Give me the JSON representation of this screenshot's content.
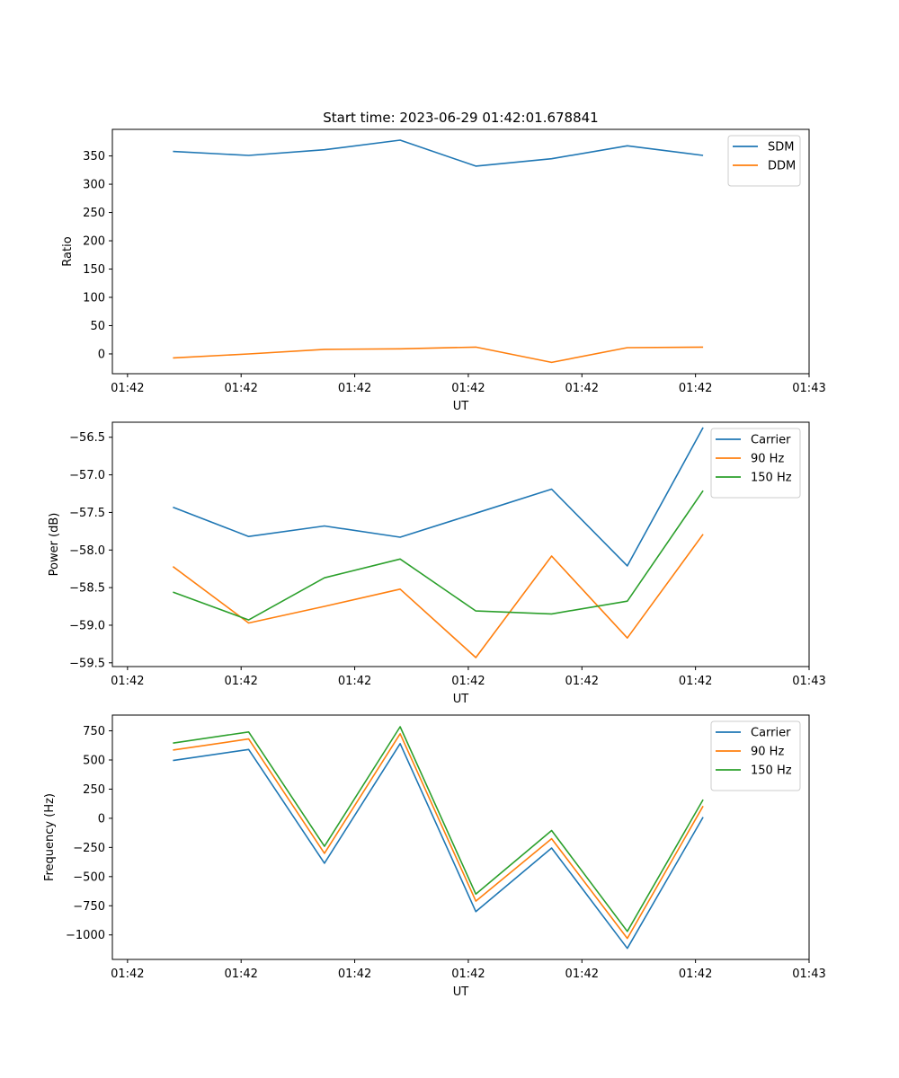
{
  "figure": {
    "title": "Start time: 2023-06-29 01:42:01.678841"
  },
  "colors": {
    "blue": "#1f77b4",
    "orange": "#ff7f0e",
    "green": "#2ca02c",
    "axes": "#000000",
    "legend_border": "#cccccc"
  },
  "chart_data": [
    {
      "type": "line",
      "title": "Start time: 2023-06-29 01:42:01.678841",
      "xlabel": "UT",
      "ylabel": "Ratio",
      "x": [
        1,
        2,
        3,
        4,
        5,
        6,
        7,
        8
      ],
      "xlim": [
        0.2,
        9.4
      ],
      "xticks": [
        0.4,
        1.9,
        3.4,
        4.9,
        6.4,
        7.9,
        9.4
      ],
      "xtick_labels": [
        "01:42",
        "01:42",
        "01:42",
        "01:42",
        "01:42",
        "01:42",
        "01:43"
      ],
      "ylim": [
        -35,
        397
      ],
      "yticks": [
        0,
        50,
        100,
        150,
        200,
        250,
        300,
        350
      ],
      "ytick_labels": [
        "0",
        "50",
        "100",
        "150",
        "200",
        "250",
        "300",
        "350"
      ],
      "legend": "top-right",
      "series": [
        {
          "name": "SDM",
          "color": "#1f77b4",
          "values": [
            358,
            351,
            361,
            378,
            332,
            345,
            368,
            351
          ]
        },
        {
          "name": "DDM",
          "color": "#ff7f0e",
          "values": [
            -7,
            0,
            8,
            9,
            12,
            -15,
            11,
            12
          ]
        }
      ]
    },
    {
      "type": "line",
      "title": "",
      "xlabel": "UT",
      "ylabel": "Power (dB)",
      "x": [
        1,
        2,
        3,
        4,
        5,
        6,
        7,
        8
      ],
      "xlim": [
        0.2,
        9.4
      ],
      "xticks": [
        0.4,
        1.9,
        3.4,
        4.9,
        6.4,
        7.9,
        9.4
      ],
      "xtick_labels": [
        "01:42",
        "01:42",
        "01:42",
        "01:42",
        "01:42",
        "01:42",
        "01:43"
      ],
      "ylim": [
        -59.55,
        -56.3
      ],
      "yticks": [
        -59.5,
        -59.0,
        -58.5,
        -58.0,
        -57.5,
        -57.0,
        -56.5
      ],
      "ytick_labels": [
        "−59.5",
        "−59.0",
        "−58.5",
        "−58.0",
        "−57.5",
        "−57.0",
        "−56.5"
      ],
      "legend": "top-right",
      "series": [
        {
          "name": "Carrier",
          "color": "#1f77b4",
          "values": [
            -57.43,
            -57.82,
            -57.68,
            -57.83,
            -57.51,
            -57.19,
            -58.21,
            -56.37
          ]
        },
        {
          "name": "90 Hz",
          "color": "#ff7f0e",
          "values": [
            -58.22,
            -58.97,
            -58.75,
            -58.52,
            -59.43,
            -58.08,
            -59.17,
            -57.79
          ]
        },
        {
          "name": "150 Hz",
          "color": "#2ca02c",
          "values": [
            -58.56,
            -58.93,
            -58.37,
            -58.12,
            -58.81,
            -58.85,
            -58.68,
            -57.21
          ]
        }
      ]
    },
    {
      "type": "line",
      "title": "",
      "xlabel": "UT",
      "ylabel": "Frequency (Hz)",
      "x": [
        1,
        2,
        3,
        4,
        5,
        6,
        7,
        8
      ],
      "xlim": [
        0.2,
        9.4
      ],
      "xticks": [
        0.4,
        1.9,
        3.4,
        4.9,
        6.4,
        7.9,
        9.4
      ],
      "xtick_labels": [
        "01:42",
        "01:42",
        "01:42",
        "01:42",
        "01:42",
        "01:42",
        "01:43"
      ],
      "ylim": [
        -1210,
        885
      ],
      "yticks": [
        -1000,
        -750,
        -500,
        -250,
        0,
        250,
        500,
        750
      ],
      "ytick_labels": [
        "−1000",
        "−750",
        "−500",
        "−250",
        "0",
        "250",
        "500",
        "750"
      ],
      "legend": "top-right",
      "series": [
        {
          "name": "Carrier",
          "color": "#1f77b4",
          "values": [
            495,
            590,
            -385,
            640,
            -800,
            -255,
            -1115,
            10
          ]
        },
        {
          "name": "90 Hz",
          "color": "#ff7f0e",
          "values": [
            585,
            680,
            -300,
            725,
            -710,
            -175,
            -1030,
            105
          ]
        },
        {
          "name": "150 Hz",
          "color": "#2ca02c",
          "values": [
            645,
            740,
            -240,
            785,
            -650,
            -105,
            -970,
            160
          ]
        }
      ]
    }
  ]
}
